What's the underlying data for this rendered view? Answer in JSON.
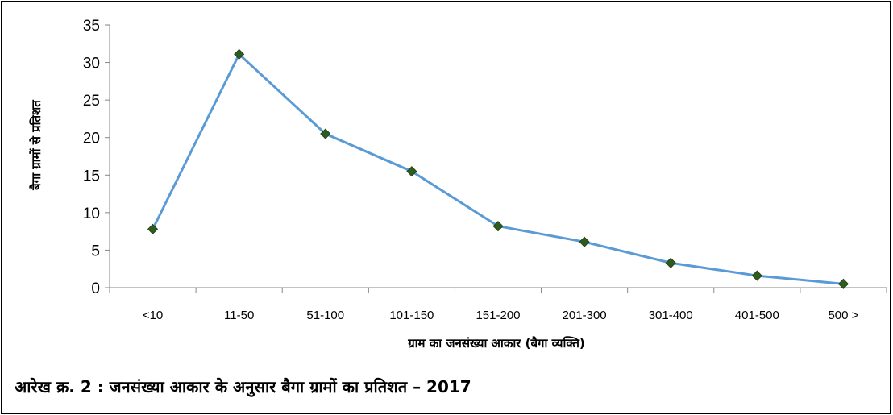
{
  "chart_data": {
    "type": "line",
    "categories": [
      "<10",
      "11-50",
      "51-100",
      "101-150",
      "151-200",
      "201-300",
      "301-400",
      "401-500",
      "500 >"
    ],
    "values": [
      7.8,
      31.1,
      20.5,
      15.5,
      8.2,
      6.1,
      3.3,
      1.6,
      0.5
    ],
    "xlabel": "ग्राम का जनसंख्या आकार (बैगा व्यक्ति)",
    "ylabel": "बैगा ग्रामों से प्रतिशत",
    "ylim": [
      0,
      35
    ],
    "yticks": [
      "0",
      "5",
      "10",
      "15",
      "20",
      "25",
      "30",
      "35"
    ],
    "grid": false,
    "legend": "none",
    "line_color": "#5b9bd5",
    "marker_color": "#2e5c1e"
  },
  "caption": "आरेख क्र. 2 : जनसंख्या आकार के अनुसार बैगा ग्रामों का प्रतिशत – 2017"
}
